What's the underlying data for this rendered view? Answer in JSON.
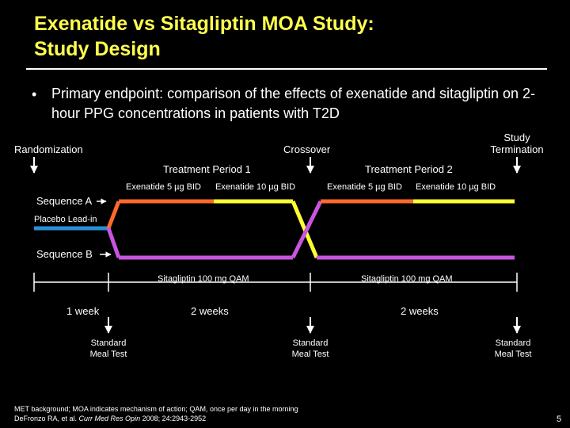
{
  "title": {
    "line1": "Exenatide vs Sitagliptin MOA Study:",
    "line2": "Study Design"
  },
  "bullet": {
    "text": "Primary endpoint: comparison of the effects of exenatide and sitagliptin on 2-hour PPG concentrations in patients with T2D"
  },
  "labels": {
    "randomization": "Randomization",
    "crossover": "Crossover",
    "termination_line1": "Study",
    "termination_line2": "Termination",
    "period1": "Treatment Period 1",
    "period2": "Treatment Period 2",
    "exenatide5_p1": "Exenatide 5 µg BID",
    "exenatide10_p1": "Exenatide 10 µg BID",
    "exenatide5_p2": "Exenatide 5 µg BID",
    "exenatide10_p2": "Exenatide 10 µg BID",
    "sequence_a": "Sequence A",
    "placebo": "Placebo Lead-in",
    "sequence_b": "Sequence B",
    "sitagliptin_p1": "Sitagliptin 100 mg QAM",
    "sitagliptin_p2": "Sitagliptin 100 mg QAM",
    "duration1": "1 week",
    "duration2": "2 weeks",
    "duration3": "2 weeks",
    "meal_test_line1": "Standard",
    "meal_test_line2": "Meal Test"
  },
  "footnote": {
    "line1": "MET background; MOA indicates mechanism of action; QAM, once per day in the morning",
    "ref_authors": "DeFronzo RA, et al. ",
    "ref_journal": "Curr Med Res Opin",
    "ref_rest": " 2008; 24:2943-2952"
  },
  "page_number": "5",
  "colors": {
    "title": "#ffff4d",
    "exenatide_5": "#ff6a2a",
    "exenatide_10": "#ffff33",
    "sitagliptin": "#c855e0",
    "placebo": "#2a8fd6"
  }
}
